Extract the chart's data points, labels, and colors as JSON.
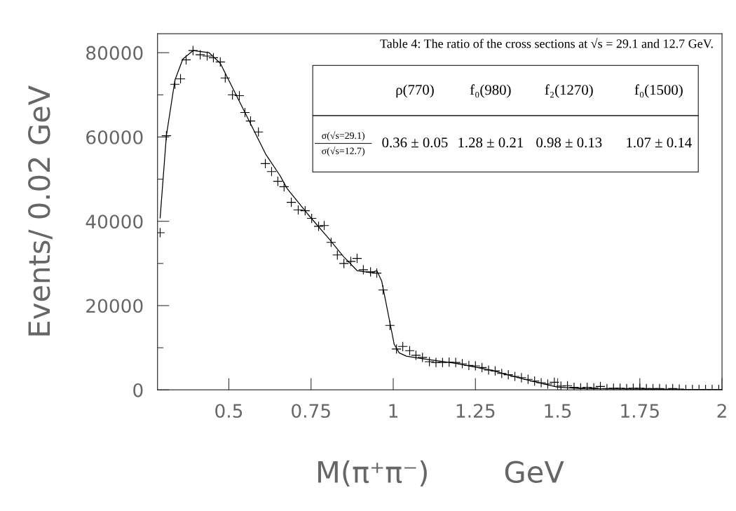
{
  "chart_data": {
    "type": "scatter",
    "xlabel": "M(π⁺π⁻)        GeV",
    "ylabel": "Events/ 0.02 GeV",
    "xlim": [
      0.283,
      2.0
    ],
    "ylim": [
      0,
      84500
    ],
    "xticks": [
      0.5,
      0.75,
      1,
      1.25,
      1.5,
      1.75,
      2
    ],
    "yticks": [
      0,
      {
        "value": 10000,
        "label": null
      },
      20000,
      {
        "value": 30000,
        "label": null
      },
      40000,
      {
        "value": 50000,
        "label": null
      },
      60000,
      {
        "value": 70000,
        "label": null
      },
      80000
    ],
    "grid": false,
    "legend": false,
    "annotations": [
      "Table 4: The ratio of the cross sections at √s = 29.1 and 12.7 GeV.",
      "ρ(770)",
      "f₀(980)",
      "f₂(1270)",
      "f₀(1500)",
      "σ(√s=29.1)",
      "σ(√s=12.7)",
      "0.36 ± 0.05",
      "1.28 ± 0.21",
      "0.98 ± 0.13",
      "1.07 ± 0.14"
    ],
    "series": [
      {
        "color": "#000000",
        "marker": "cross",
        "x": [
          0.291,
          0.31,
          0.336,
          0.353,
          0.37,
          0.391,
          0.413,
          0.434,
          0.453,
          0.474,
          0.489,
          0.511,
          0.532,
          0.549,
          0.566,
          0.59,
          0.611,
          0.63,
          0.649,
          0.668,
          0.69,
          0.711,
          0.732,
          0.752,
          0.773,
          0.79,
          0.811,
          0.83,
          0.85,
          0.871,
          0.89,
          0.909,
          0.931,
          0.95,
          0.969,
          0.99,
          1.01,
          1.029,
          1.05,
          1.069,
          1.089,
          1.11,
          1.13,
          1.15,
          1.17,
          1.19,
          1.21,
          1.23,
          1.25,
          1.27,
          1.29,
          1.31,
          1.33,
          1.35,
          1.37,
          1.39,
          1.41,
          1.43,
          1.45,
          1.47,
          1.49,
          1.51,
          1.53,
          1.55,
          1.57,
          1.59,
          1.61,
          1.63,
          1.65,
          1.67,
          1.69,
          1.71,
          1.73,
          1.75,
          1.77,
          1.79,
          1.81,
          1.83,
          1.85,
          1.87,
          1.89,
          1.91,
          1.93,
          1.95,
          1.97,
          1.99
        ],
        "values": [
          37300,
          60300,
          72500,
          73800,
          78300,
          80500,
          79500,
          79200,
          78800,
          77800,
          74000,
          70000,
          69800,
          65800,
          63800,
          61200,
          53700,
          51800,
          49500,
          48200,
          44500,
          42700,
          42500,
          40700,
          38800,
          39000,
          35000,
          32000,
          30000,
          30500,
          31200,
          28500,
          28000,
          27700,
          23700,
          15300,
          9700,
          10300,
          9300,
          8200,
          7700,
          6700,
          6500,
          6500,
          6600,
          6500,
          6200,
          5800,
          5700,
          5300,
          4700,
          4500,
          3900,
          3600,
          3200,
          2900,
          2500,
          2100,
          1700,
          1400,
          1800,
          900,
          1000,
          600,
          500,
          600,
          500,
          800,
          300,
          400,
          400,
          300,
          400,
          400,
          300,
          300,
          300,
          200,
          300,
          200,
          100,
          100,
          100,
          100,
          100,
          100
        ]
      },
      {
        "type": "line",
        "color": "#000000",
        "marker": "none",
        "line_style": "solid",
        "x": [
          0.291,
          0.31,
          0.336,
          0.36,
          0.391,
          0.44,
          0.474,
          0.511,
          0.549,
          0.613,
          0.656,
          0.677,
          0.74,
          0.805,
          0.848,
          0.89,
          0.933,
          0.95,
          0.965,
          0.986,
          1.003,
          1.018,
          1.04,
          1.08,
          1.19,
          1.295,
          1.4,
          1.498,
          1.57,
          1.72,
          1.93,
          2.0
        ],
        "values": [
          40800,
          60300,
          73500,
          78500,
          80500,
          80000,
          77500,
          71700,
          65800,
          55800,
          50800,
          47800,
          41700,
          35800,
          31700,
          28300,
          27800,
          28300,
          25800,
          17500,
          10800,
          8800,
          8000,
          7500,
          6300,
          4700,
          2500,
          700,
          300,
          200,
          0,
          100
        ]
      }
    ]
  }
}
